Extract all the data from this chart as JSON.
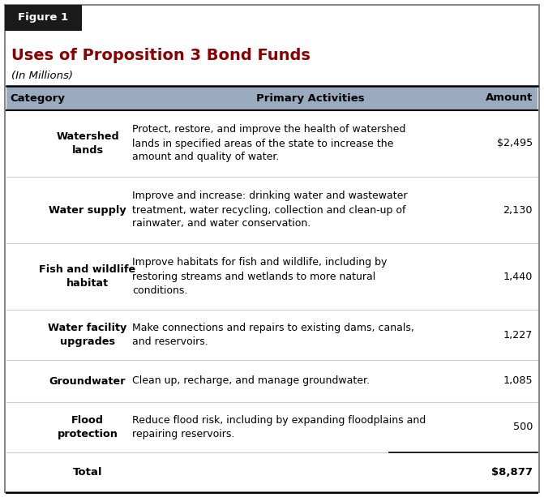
{
  "figure_label": "Figure 1",
  "title": "Uses of Proposition 3 Bond Funds",
  "subtitle": "(In Millions)",
  "header_bg_color": "#9aabbf",
  "title_color": "#8b0000",
  "figure_label_bg": "#1a1a1a",
  "figure_label_color": "#ffffff",
  "outer_border_color": "#888888",
  "col_headers": [
    "Category",
    "Primary Activities",
    "Amount"
  ],
  "rows": [
    {
      "category": "Watershed\nlands",
      "activity": "Protect, restore, and improve the health of watershed\nlands in specified areas of the state to increase the\namount and quality of water.",
      "amount": "$2,495"
    },
    {
      "category": "Water supply",
      "activity": "Improve and increase: drinking water and wastewater\ntreatment, water recycling, collection and clean-up of\nrainwater, and water conservation.",
      "amount": "2,130"
    },
    {
      "category": "Fish and wildlife\nhabitat",
      "activity": "Improve habitats for fish and wildlife, including by\nrestoring streams and wetlands to more natural\nconditions.",
      "amount": "1,440"
    },
    {
      "category": "Water facility\nupgrades",
      "activity": "Make connections and repairs to existing dams, canals,\nand reservoirs.",
      "amount": "1,227"
    },
    {
      "category": "Groundwater",
      "activity": "Clean up, recharge, and manage groundwater.",
      "amount": "1,085"
    },
    {
      "category": "Flood\nprotection",
      "activity": "Reduce flood risk, including by expanding floodplains and\nrepairing reservoirs.",
      "amount": "500"
    }
  ],
  "total_label": "Total",
  "total_amount": "$8,877",
  "fig_bg": "#ffffff",
  "row_line_color": "#cccccc",
  "border_color": "#888888"
}
